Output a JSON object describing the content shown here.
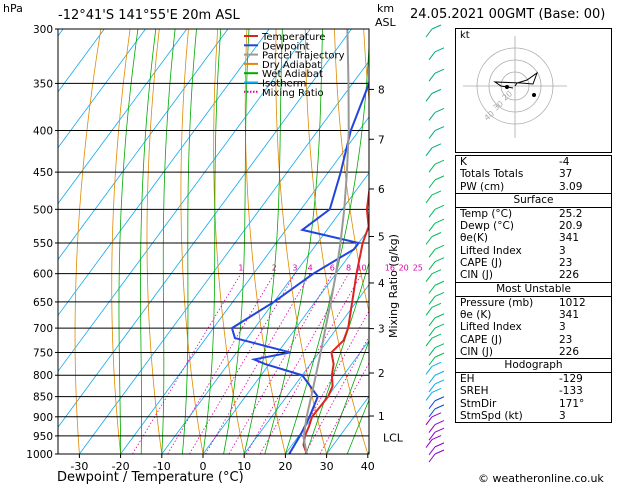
{
  "header": {
    "pressure_unit": "hPa",
    "location": "-12°41'S  141°55'E  20m  ASL",
    "height_unit_line1": "km",
    "height_unit_line2": "ASL",
    "datetime": "24.05.2021  00GMT  (Base: 00)"
  },
  "footer": {
    "copyright": "© weatheronline.co.uk"
  },
  "chart_data": {
    "type": "line",
    "title": "-12°41'S  141°55'E  20m  ASL",
    "xlabel": "Dewpoint / Temperature (°C)",
    "ylabel": "hPa",
    "x_ticks": [
      -30,
      -20,
      -10,
      0,
      10,
      20,
      30,
      40
    ],
    "pressure_levels": [
      300,
      350,
      400,
      450,
      500,
      550,
      600,
      650,
      700,
      750,
      800,
      850,
      900,
      950,
      1000
    ],
    "height_ticks_km": [
      {
        "km": "8",
        "p": 356
      },
      {
        "km": "7",
        "p": 410
      },
      {
        "km": "6",
        "p": 472
      },
      {
        "km": "5",
        "p": 540
      },
      {
        "km": "4",
        "p": 616
      },
      {
        "km": "3",
        "p": 701
      },
      {
        "km": "2",
        "p": 795
      },
      {
        "km": "1",
        "p": 898
      }
    ],
    "lcl_label": "LCL",
    "lcl_p": 955,
    "mixing_ratio_label": "Mixing Ratio (g/kg)",
    "mixing_ratios": [
      "1",
      "2",
      "3",
      "4",
      "6",
      "8",
      "10",
      "16",
      "20",
      "25"
    ],
    "legend": [
      {
        "name": "Temperature",
        "color": "#dd2222"
      },
      {
        "name": "Dewpoint",
        "color": "#2244dd"
      },
      {
        "name": "Parcel Trajectory",
        "color": "#999999"
      },
      {
        "name": "Dry Adiabat",
        "color": "#e08a00"
      },
      {
        "name": "Wet Adiabat",
        "color": "#00aa00"
      },
      {
        "name": "Isotherm",
        "color": "#11aaee"
      },
      {
        "name": "Mixing Ratio",
        "color": "#dd00aa"
      }
    ],
    "series": [
      {
        "name": "Temperature",
        "color": "#dd2222",
        "points": [
          [
            1000,
            25.2
          ],
          [
            975,
            22.8
          ],
          [
            950,
            21.5
          ],
          [
            925,
            20.8
          ],
          [
            900,
            19.8
          ],
          [
            850,
            20.1
          ],
          [
            825,
            19.3
          ],
          [
            800,
            17.2
          ],
          [
            775,
            15.6
          ],
          [
            750,
            13.0
          ],
          [
            725,
            13.8
          ],
          [
            700,
            12.7
          ],
          [
            650,
            9.0
          ],
          [
            600,
            5.0
          ],
          [
            550,
            1.0
          ],
          [
            525,
            -0.5
          ],
          [
            500,
            -4.0
          ],
          [
            450,
            -9.5
          ],
          [
            400,
            -16.5
          ],
          [
            350,
            -25.0
          ],
          [
            300,
            -33.0
          ]
        ]
      },
      {
        "name": "Dewpoint",
        "color": "#2244dd",
        "points": [
          [
            1000,
            20.9
          ],
          [
            950,
            20.3
          ],
          [
            900,
            19.2
          ],
          [
            850,
            17.6
          ],
          [
            800,
            10.0
          ],
          [
            775,
            -1.0
          ],
          [
            765,
            -4.5
          ],
          [
            750,
            3.0
          ],
          [
            720,
            -13.0
          ],
          [
            700,
            -15.5
          ],
          [
            650,
            -10.0
          ],
          [
            600,
            -5.5
          ],
          [
            560,
            0.0
          ],
          [
            550,
            0.0
          ],
          [
            530,
            -16.0
          ],
          [
            500,
            -13.0
          ],
          [
            450,
            -17.0
          ],
          [
            400,
            -22.0
          ],
          [
            350,
            -26.0
          ],
          [
            310,
            -31.5
          ],
          [
            300,
            -32.5
          ]
        ]
      },
      {
        "name": "Parcel Trajectory",
        "color": "#999999",
        "points": [
          [
            1000,
            25.2
          ],
          [
            955,
            21.5
          ],
          [
            900,
            18.5
          ],
          [
            850,
            16.0
          ],
          [
            800,
            13.3
          ],
          [
            750,
            10.4
          ],
          [
            700,
            7.2
          ],
          [
            650,
            3.8
          ],
          [
            600,
            0.0
          ],
          [
            550,
            -4.4
          ],
          [
            500,
            -9.5
          ],
          [
            450,
            -15.5
          ],
          [
            400,
            -22.5
          ],
          [
            350,
            -31.0
          ],
          [
            300,
            -41.0
          ]
        ]
      }
    ]
  },
  "hodograph": {
    "label": "kt",
    "ring_labels": [
      "20",
      "30",
      "40"
    ]
  },
  "indices": {
    "general": [
      {
        "label": "K",
        "value": "-4"
      },
      {
        "label": "Totals Totals",
        "value": "37"
      },
      {
        "label": "PW (cm)",
        "value": "3.09"
      }
    ],
    "surface": {
      "heading": "Surface",
      "rows": [
        {
          "label": "Temp (°C)",
          "value": "25.2"
        },
        {
          "label": "Dewp (°C)",
          "value": "20.9"
        },
        {
          "label": "θe(K)",
          "value": "341"
        },
        {
          "label": "Lifted Index",
          "value": "3"
        },
        {
          "label": "CAPE (J)",
          "value": "23"
        },
        {
          "label": "CIN (J)",
          "value": "226"
        }
      ]
    },
    "most_unstable": {
      "heading": "Most Unstable",
      "rows": [
        {
          "label": "Pressure (mb)",
          "value": "1012"
        },
        {
          "label": "θe (K)",
          "value": "341"
        },
        {
          "label": "Lifted Index",
          "value": "3"
        },
        {
          "label": "CAPE (J)",
          "value": "23"
        },
        {
          "label": "CIN (J)",
          "value": "226"
        }
      ]
    },
    "hodograph_box": {
      "heading": "Hodograph",
      "rows": [
        {
          "label": "EH",
          "value": "-129"
        },
        {
          "label": "SREH",
          "value": "-133"
        },
        {
          "label": "StmDir",
          "value": "171°"
        },
        {
          "label": "StmSpd (kt)",
          "value": "3"
        }
      ]
    }
  }
}
